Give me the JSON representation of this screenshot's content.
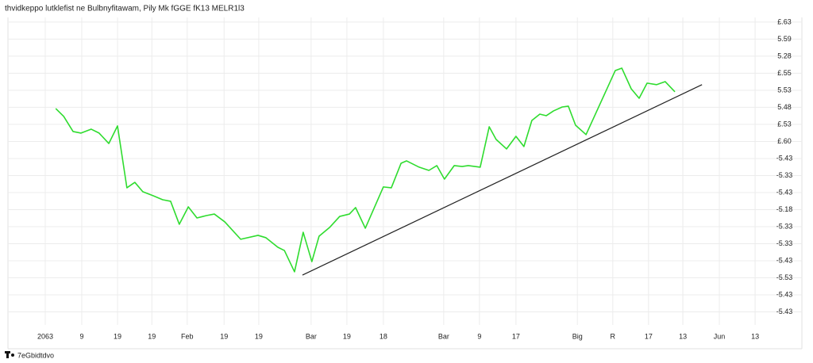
{
  "chart_data": {
    "type": "line",
    "title": "thvidkeppo lutklefist ne Bulbnyfitawam, Pily Mk fGGE fK13 MELR1l3",
    "watermark": "7eGbidtdvo",
    "xlim": [
      -1,
      20
    ],
    "ylim": [
      -0.8,
      17.8
    ],
    "xticks": [
      {
        "value": 0,
        "label": "2063"
      },
      {
        "value": 1.01,
        "label": "9"
      },
      {
        "value": 2,
        "label": "19"
      },
      {
        "value": 2.95,
        "label": "19"
      },
      {
        "value": 3.93,
        "label": "Feb"
      },
      {
        "value": 4.95,
        "label": "19"
      },
      {
        "value": 5.91,
        "label": "19"
      },
      {
        "value": 7.36,
        "label": "Bar"
      },
      {
        "value": 8.35,
        "label": "19"
      },
      {
        "value": 9.36,
        "label": "18"
      },
      {
        "value": 11.03,
        "label": "Bar"
      },
      {
        "value": 12.02,
        "label": "9"
      },
      {
        "value": 13.03,
        "label": "17"
      },
      {
        "value": 14.73,
        "label": "Big"
      },
      {
        "value": 15.71,
        "label": "R"
      },
      {
        "value": 16.7,
        "label": "17"
      },
      {
        "value": 17.65,
        "label": "13"
      },
      {
        "value": 18.66,
        "label": "Jun"
      },
      {
        "value": 19.65,
        "label": "13"
      }
    ],
    "yticks": [
      {
        "value": 17,
        "label": "£.63"
      },
      {
        "value": 16,
        "label": "5.59"
      },
      {
        "value": 15,
        "label": "5.28"
      },
      {
        "value": 14,
        "label": "£.55"
      },
      {
        "value": 13,
        "label": "5.53"
      },
      {
        "value": 12,
        "label": "5.48"
      },
      {
        "value": 11,
        "label": "£.53"
      },
      {
        "value": 10,
        "label": "£.60"
      },
      {
        "value": 9,
        "label": "-5.43"
      },
      {
        "value": 8,
        "label": "-5.33"
      },
      {
        "value": 7,
        "label": "-5.43"
      },
      {
        "value": 6,
        "label": "-5.18"
      },
      {
        "value": 5,
        "label": "-5.33"
      },
      {
        "value": 4,
        "label": "-5.33"
      },
      {
        "value": 3,
        "label": "-5.43"
      },
      {
        "value": 2,
        "label": "-5.53"
      },
      {
        "value": 1,
        "label": "-5.43"
      },
      {
        "value": 0,
        "label": "-5.43"
      }
    ],
    "grid": true,
    "color": "#2fdc2f",
    "x": [
      0.29,
      0.51,
      0.77,
      0.99,
      1.27,
      1.49,
      1.76,
      2.0,
      2.26,
      2.48,
      2.7,
      2.99,
      3.25,
      3.47,
      3.71,
      3.96,
      4.2,
      4.46,
      4.68,
      4.97,
      5.41,
      5.89,
      6.11,
      6.44,
      6.62,
      6.9,
      7.14,
      7.38,
      7.58,
      7.87,
      8.15,
      8.42,
      8.59,
      8.86,
      9.36,
      9.58,
      9.85,
      10.0,
      10.35,
      10.62,
      10.84,
      11.05,
      11.32,
      11.54,
      11.71,
      12.04,
      12.29,
      12.48,
      12.77,
      13.03,
      13.25,
      13.47,
      13.69,
      13.87,
      14.07,
      14.31,
      14.48,
      14.68,
      14.97,
      15.19,
      15.78,
      15.96,
      16.22,
      16.44,
      16.66,
      16.92,
      17.16,
      17.43
    ],
    "values": [
      11.93,
      11.47,
      10.58,
      10.49,
      10.72,
      10.49,
      9.88,
      10.91,
      7.28,
      7.6,
      7.05,
      6.81,
      6.58,
      6.49,
      5.14,
      6.16,
      5.51,
      5.65,
      5.74,
      5.28,
      4.26,
      4.49,
      4.35,
      3.79,
      3.6,
      2.35,
      4.67,
      2.95,
      4.44,
      4.95,
      5.6,
      5.74,
      6.12,
      4.91,
      7.33,
      7.28,
      8.72,
      8.86,
      8.49,
      8.3,
      8.58,
      7.79,
      8.58,
      8.53,
      8.58,
      8.49,
      10.86,
      10.12,
      9.56,
      10.3,
      9.7,
      11.23,
      11.6,
      11.51,
      11.79,
      12.02,
      12.07,
      10.95,
      10.4,
      11.42,
      14.16,
      14.3,
      13.09,
      12.53,
      13.42,
      13.33,
      13.51,
      12.91
    ],
    "trendline": {
      "x": [
        7.12,
        18.18
      ],
      "y": [
        2.16,
        13.33
      ],
      "color": "#222222"
    }
  }
}
